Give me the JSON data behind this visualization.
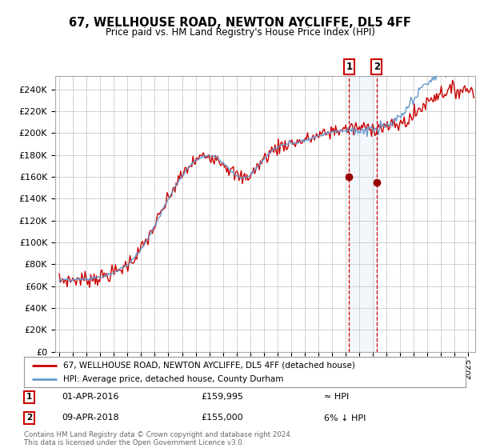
{
  "title": "67, WELLHOUSE ROAD, NEWTON AYCLIFFE, DL5 4FF",
  "subtitle": "Price paid vs. HM Land Registry's House Price Index (HPI)",
  "ylim": [
    0,
    250000
  ],
  "xlim_start": 1994.7,
  "xlim_end": 2025.5,
  "sale1_x": 2016.25,
  "sale1_y": 159995,
  "sale1_label": "1",
  "sale1_date": "01-APR-2016",
  "sale1_price": "£159,995",
  "sale1_hpi": "≈ HPI",
  "sale2_x": 2018.27,
  "sale2_y": 155000,
  "sale2_label": "2",
  "sale2_date": "09-APR-2018",
  "sale2_price": "£155,000",
  "sale2_hpi": "6% ↓ HPI",
  "line_color_sale": "#cc0000",
  "line_color_hpi": "#6699cc",
  "marker_color": "#990000",
  "dashed_color": "#cc0000",
  "legend1": "67, WELLHOUSE ROAD, NEWTON AYCLIFFE, DL5 4FF (detached house)",
  "legend2": "HPI: Average price, detached house, County Durham",
  "footer": "Contains HM Land Registry data © Crown copyright and database right 2024.\nThis data is licensed under the Open Government Licence v3.0.",
  "background_color": "#ffffff",
  "grid_color": "#cccccc",
  "span_color": "#ddeeff"
}
